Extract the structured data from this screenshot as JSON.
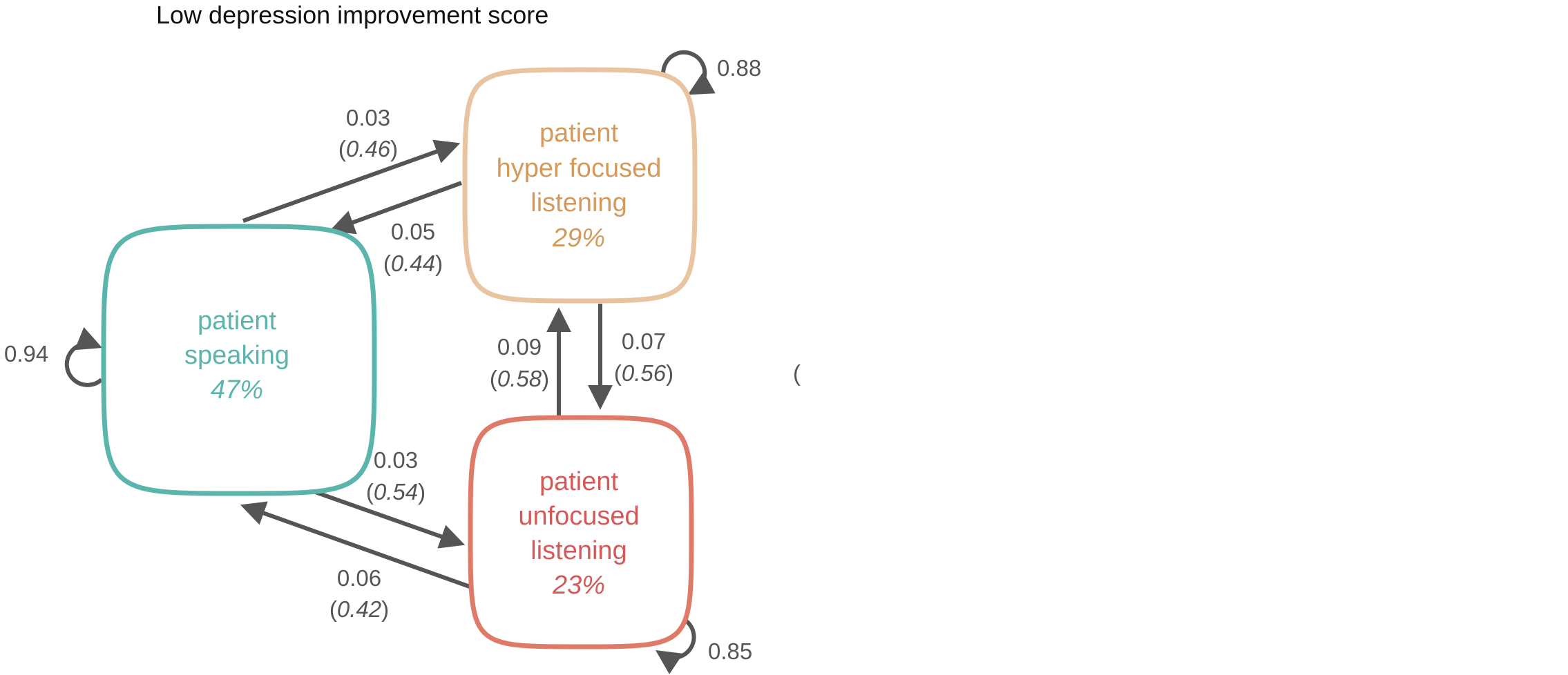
{
  "title": "Low depression improvement score",
  "colors": {
    "speaking": "#5bb5ad",
    "hyper": "#e9c4a0",
    "hyper_text": "#d49a5c",
    "unfocused_border": "#e07a68",
    "unfocused_text": "#d45a5a",
    "edge": "#555555"
  },
  "states": {
    "speaking": {
      "line1": "patient",
      "line2": "speaking",
      "pct": "47%"
    },
    "hyper": {
      "line1": "patient",
      "line2": "hyper focused",
      "line3": "listening",
      "pct": "29%"
    },
    "unfocused": {
      "line1": "patient",
      "line2": "unfocused",
      "line3": "listening",
      "pct": "23%"
    }
  },
  "self_loops": {
    "speaking": "0.94",
    "hyper": "0.88",
    "unfocused": "0.85"
  },
  "transitions": {
    "speaking_to_hyper": {
      "p": "0.03",
      "paren": "0.46"
    },
    "hyper_to_speaking": {
      "p": "0.05",
      "paren": "0.44"
    },
    "unfocused_to_hyper": {
      "p": "0.09",
      "paren": "0.58"
    },
    "hyper_to_unfocused": {
      "p": "0.07",
      "paren": "0.56"
    },
    "speaking_to_unfocused": {
      "p": "0.03",
      "paren": "0.54"
    },
    "unfocused_to_speaking": {
      "p": "0.06",
      "paren": "0.42"
    }
  },
  "stray_mark": "("
}
